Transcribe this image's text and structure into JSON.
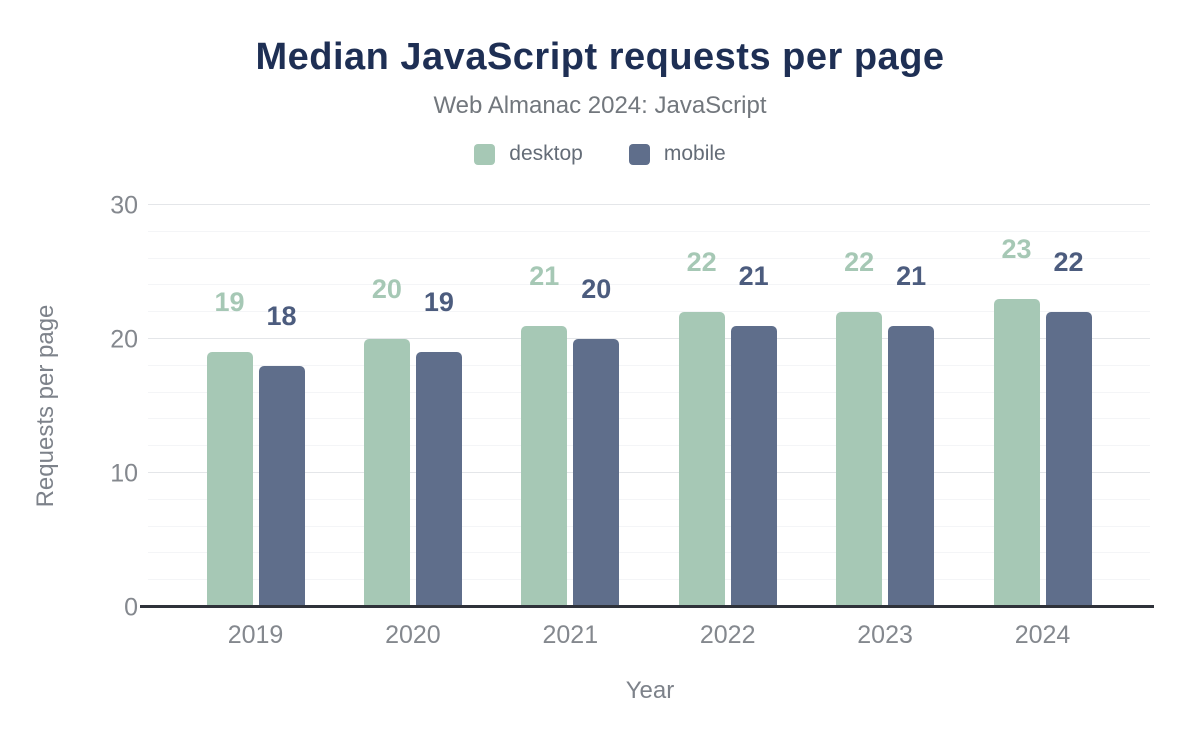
{
  "page": {
    "background": "#ffffff",
    "title_color": "#1e2f54",
    "subtitle_color": "#72777d",
    "axis_text_color": "#84888e",
    "axis_title_color": "#7d828a",
    "baseline_color": "#2f323a"
  },
  "chart_data": {
    "type": "bar",
    "title": "Median JavaScript requests per page",
    "subtitle": "Web Almanac 2024: JavaScript",
    "xlabel": "Year",
    "ylabel": "Requests per page",
    "categories": [
      "2019",
      "2020",
      "2021",
      "2022",
      "2023",
      "2024"
    ],
    "series": [
      {
        "name": "desktop",
        "color": "#a6c8b5",
        "label_color": "#a6c8b5",
        "values": [
          19,
          20,
          21,
          22,
          22,
          23
        ]
      },
      {
        "name": "mobile",
        "color": "#5f6e8b",
        "label_color": "#4c5c7e",
        "values": [
          18,
          19,
          20,
          21,
          21,
          22
        ]
      }
    ],
    "ylim": [
      0,
      30
    ],
    "yticks": [
      0,
      10,
      20,
      30
    ],
    "minor_grid_step": 2,
    "grid": "on",
    "legend_position": "top",
    "value_labels": "above-bars"
  }
}
